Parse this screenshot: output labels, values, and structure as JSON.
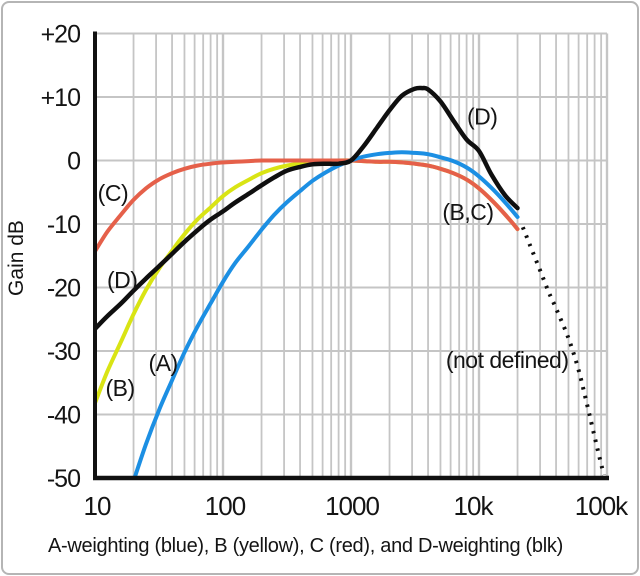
{
  "frame": {
    "background": "#ffffff",
    "border_color": "#b5b5b5"
  },
  "chart_data": {
    "type": "line",
    "ylabel": "Gain dB",
    "caption": "A-weighting (blue), B (yellow), C (red), and D-weighting (blk)",
    "x_scale": "log",
    "x_range": [
      10,
      100000
    ],
    "y_range": [
      -50,
      20
    ],
    "grid": {
      "show": true,
      "color": "#c5c5c5",
      "log_minor_x": true,
      "y_step": 10
    },
    "axis_color": "#111111",
    "x_ticks": [
      {
        "v": 10,
        "label": "10",
        "dx": 2
      },
      {
        "v": 100,
        "label": "100",
        "dx": 2
      },
      {
        "v": 1000,
        "label": "1000",
        "dx": 1
      },
      {
        "v": 10000,
        "label": "10k",
        "dx": -6
      },
      {
        "v": 100000,
        "label": "100k",
        "dx": -6
      }
    ],
    "y_ticks": [
      {
        "v": 20,
        "label": "+20"
      },
      {
        "v": 10,
        "label": "+10"
      },
      {
        "v": 0,
        "label": "0"
      },
      {
        "v": -10,
        "label": "-10"
      },
      {
        "v": -20,
        "label": "-20"
      },
      {
        "v": -30,
        "label": "-30"
      },
      {
        "v": -40,
        "label": "-40"
      },
      {
        "v": -50,
        "label": "-50"
      }
    ],
    "series": [
      {
        "name": "B-weighting",
        "label": "B (yellow)",
        "color": "#d9e414",
        "stroke_width": 4,
        "dash": "solid",
        "points": [
          [
            10,
            -38.2
          ],
          [
            12.5,
            -33.2
          ],
          [
            16,
            -28.5
          ],
          [
            20,
            -24.2
          ],
          [
            25,
            -20.4
          ],
          [
            31.5,
            -17.1
          ],
          [
            40,
            -14.2
          ],
          [
            50,
            -11.6
          ],
          [
            63,
            -9.3
          ],
          [
            80,
            -7.4
          ],
          [
            100,
            -5.6
          ],
          [
            125,
            -4.2
          ],
          [
            160,
            -3.0
          ],
          [
            200,
            -2.0
          ],
          [
            250,
            -1.3
          ],
          [
            315,
            -0.8
          ],
          [
            400,
            -0.5
          ],
          [
            500,
            -0.3
          ],
          [
            630,
            -0.1
          ],
          [
            800,
            0
          ],
          [
            1000,
            0
          ],
          [
            1250,
            -0.1
          ],
          [
            1600,
            -0.2
          ],
          [
            2000,
            -0.2
          ],
          [
            2500,
            -0.3
          ],
          [
            3150,
            -0.5
          ],
          [
            4000,
            -0.8
          ],
          [
            5000,
            -1.3
          ],
          [
            6300,
            -2.0
          ],
          [
            8000,
            -3.0
          ],
          [
            10000,
            -4.4
          ],
          [
            12500,
            -6.2
          ],
          [
            16000,
            -8.5
          ],
          [
            20000,
            -10.8
          ]
        ]
      },
      {
        "name": "C-weighting",
        "label": "C (red)",
        "color": "#e5604a",
        "stroke_width": 4,
        "dash": "solid",
        "points": [
          [
            10,
            -14.3
          ],
          [
            12.5,
            -11.2
          ],
          [
            16,
            -8.5
          ],
          [
            20,
            -6.2
          ],
          [
            25,
            -4.4
          ],
          [
            31.5,
            -3.0
          ],
          [
            40,
            -2.0
          ],
          [
            50,
            -1.3
          ],
          [
            63,
            -0.8
          ],
          [
            80,
            -0.5
          ],
          [
            100,
            -0.3
          ],
          [
            125,
            -0.2
          ],
          [
            160,
            -0.1
          ],
          [
            200,
            0
          ],
          [
            315,
            0
          ],
          [
            500,
            0
          ],
          [
            800,
            0
          ],
          [
            1000,
            0
          ],
          [
            1250,
            -0.1
          ],
          [
            1600,
            -0.2
          ],
          [
            2000,
            -0.2
          ],
          [
            2500,
            -0.3
          ],
          [
            3150,
            -0.5
          ],
          [
            4000,
            -0.8
          ],
          [
            5000,
            -1.3
          ],
          [
            6300,
            -2.0
          ],
          [
            8000,
            -3.0
          ],
          [
            10000,
            -4.4
          ],
          [
            12500,
            -6.2
          ],
          [
            16000,
            -8.5
          ],
          [
            20000,
            -10.8
          ]
        ]
      },
      {
        "name": "A-weighting",
        "label": "A-weighting (blue)",
        "color": "#1c8fe3",
        "stroke_width": 4,
        "dash": "solid",
        "points": [
          [
            16,
            -56.7
          ],
          [
            20,
            -50.5
          ],
          [
            25,
            -44.7
          ],
          [
            31.5,
            -39.4
          ],
          [
            40,
            -34.6
          ],
          [
            50,
            -30.2
          ],
          [
            63,
            -26.2
          ],
          [
            80,
            -22.5
          ],
          [
            100,
            -19.1
          ],
          [
            125,
            -16.1
          ],
          [
            160,
            -13.4
          ],
          [
            200,
            -10.9
          ],
          [
            250,
            -8.6
          ],
          [
            315,
            -6.6
          ],
          [
            400,
            -4.8
          ],
          [
            500,
            -3.2
          ],
          [
            630,
            -1.9
          ],
          [
            800,
            -0.8
          ],
          [
            1000,
            0
          ],
          [
            1250,
            0.6
          ],
          [
            1600,
            1.0
          ],
          [
            2000,
            1.2
          ],
          [
            2500,
            1.3
          ],
          [
            3150,
            1.2
          ],
          [
            4000,
            1.0
          ],
          [
            5000,
            0.5
          ],
          [
            6300,
            -0.1
          ],
          [
            8000,
            -1.1
          ],
          [
            10000,
            -2.5
          ],
          [
            12500,
            -4.3
          ],
          [
            16000,
            -6.6
          ],
          [
            20000,
            -8.9
          ]
        ]
      },
      {
        "name": "D-weighting",
        "label": "D-weighting (blk)",
        "color": "#0f0f0f",
        "stroke_width": 4.5,
        "dash": "solid",
        "points": [
          [
            10,
            -26.5
          ],
          [
            12.5,
            -24.5
          ],
          [
            16,
            -22.5
          ],
          [
            20,
            -20.5
          ],
          [
            25,
            -18.6
          ],
          [
            31.5,
            -16.7
          ],
          [
            40,
            -14.7
          ],
          [
            50,
            -12.8
          ],
          [
            63,
            -11.0
          ],
          [
            80,
            -9.3
          ],
          [
            100,
            -8.0
          ],
          [
            125,
            -6.6
          ],
          [
            160,
            -5.2
          ],
          [
            200,
            -3.9
          ],
          [
            250,
            -2.7
          ],
          [
            315,
            -1.6
          ],
          [
            400,
            -1.0
          ],
          [
            500,
            -0.6
          ],
          [
            630,
            -0.5
          ],
          [
            800,
            -0.5
          ],
          [
            1000,
            0
          ],
          [
            1250,
            2.2
          ],
          [
            1600,
            5.2
          ],
          [
            2000,
            7.9
          ],
          [
            2500,
            10.2
          ],
          [
            3150,
            11.3
          ],
          [
            3600,
            11.4
          ],
          [
            4000,
            11.2
          ],
          [
            5000,
            9.3
          ],
          [
            6300,
            6.3
          ],
          [
            8000,
            3.3
          ],
          [
            10000,
            1.5
          ],
          [
            12500,
            -2.2
          ],
          [
            16000,
            -5.5
          ],
          [
            20000,
            -7.5
          ]
        ]
      },
      {
        "name": "D-weighting-undefined",
        "label": "(not defined)",
        "color": "#0f0f0f",
        "stroke_width": 4,
        "dash": "dotted",
        "points": [
          [
            22000,
            -10.5
          ],
          [
            25000,
            -13.3
          ],
          [
            30000,
            -17.3
          ],
          [
            35000,
            -20.7
          ],
          [
            40000,
            -23.3
          ],
          [
            50000,
            -28.0
          ],
          [
            60000,
            -33.0
          ],
          [
            70000,
            -38.5
          ],
          [
            80000,
            -43.5
          ],
          [
            90000,
            -47.8
          ],
          [
            95000,
            -49.5
          ]
        ]
      }
    ],
    "annotations": [
      {
        "name": "label-c",
        "text": "(C)",
        "f": 13.8,
        "db": -5.1
      },
      {
        "name": "label-d-low",
        "text": "(D)",
        "f": 16.3,
        "db": -18.8
      },
      {
        "name": "label-b",
        "text": "(B)",
        "f": 15.7,
        "db": -35.8
      },
      {
        "name": "label-a",
        "text": "(A)",
        "f": 34,
        "db": -31.9
      },
      {
        "name": "label-d-high",
        "text": "(D)",
        "f": 10600,
        "db": 6.9
      },
      {
        "name": "label-b-c",
        "text": "(B,C)",
        "f": 8200,
        "db": -8.1
      },
      {
        "name": "label-not-defined",
        "text": "(not defined)",
        "f": 16600,
        "db": -31.4
      }
    ]
  }
}
